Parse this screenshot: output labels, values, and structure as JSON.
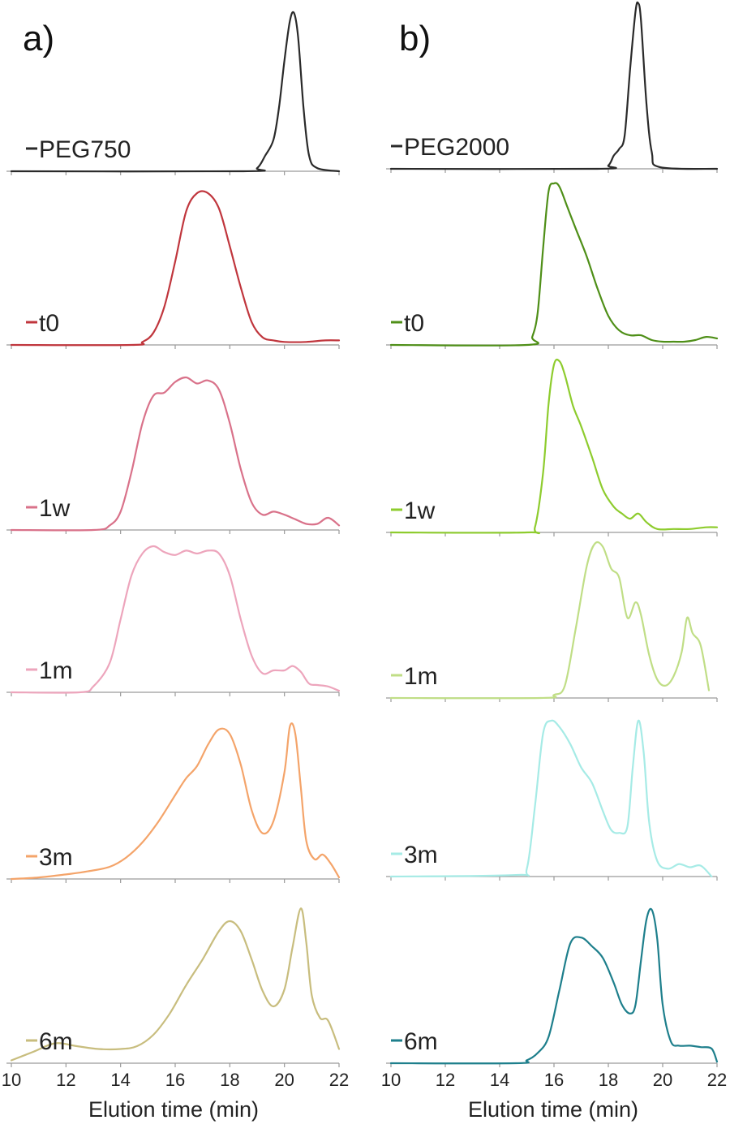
{
  "panels": [
    {
      "label": "a)"
    },
    {
      "label": "b)"
    }
  ],
  "chart_data": [
    {
      "type": "line",
      "panel": "a)",
      "xlabel": "Elution time (min)",
      "xlim": [
        10,
        22
      ],
      "xticks": [
        10,
        12,
        14,
        16,
        18,
        20,
        22
      ],
      "series": [
        {
          "name": "PEG750",
          "color": "#2a2a2a",
          "x": [
            10,
            18.5,
            19.0,
            19.3,
            19.6,
            19.8,
            20.0,
            20.2,
            20.35,
            20.5,
            20.7,
            20.9,
            21.2,
            22
          ],
          "y": [
            0,
            0,
            0.02,
            0.1,
            0.2,
            0.4,
            0.7,
            0.95,
            1.0,
            0.85,
            0.4,
            0.1,
            0.02,
            0
          ]
        },
        {
          "name": "t0",
          "color": "#c0363d",
          "x": [
            10,
            14.4,
            14.8,
            15.2,
            15.6,
            16.0,
            16.4,
            16.8,
            17.2,
            17.6,
            18.0,
            18.4,
            18.8,
            19.2,
            19.6,
            20.0,
            20.8,
            21.5,
            22
          ],
          "y": [
            0,
            0,
            0.02,
            0.08,
            0.25,
            0.55,
            0.88,
            1.0,
            1.0,
            0.9,
            0.65,
            0.38,
            0.15,
            0.05,
            0.03,
            0.02,
            0.02,
            0.03,
            0.03
          ]
        },
        {
          "name": "1w",
          "color": "#d9728a",
          "x": [
            10,
            13.0,
            13.6,
            14.0,
            14.4,
            14.8,
            15.2,
            15.6,
            16.0,
            16.4,
            16.8,
            17.2,
            17.6,
            18.0,
            18.4,
            18.8,
            19.2,
            19.6,
            20.0,
            20.4,
            20.8,
            21.2,
            21.6,
            22
          ],
          "y": [
            0,
            0,
            0.03,
            0.12,
            0.38,
            0.7,
            0.88,
            0.9,
            0.97,
            1.0,
            0.96,
            0.98,
            0.92,
            0.7,
            0.4,
            0.18,
            0.1,
            0.12,
            0.1,
            0.07,
            0.04,
            0.04,
            0.08,
            0.03
          ]
        },
        {
          "name": "1m",
          "color": "#eda5bc",
          "x": [
            10,
            12.5,
            13.0,
            13.6,
            14.0,
            14.4,
            14.8,
            15.2,
            15.6,
            16.0,
            16.4,
            16.8,
            17.2,
            17.6,
            18.0,
            18.4,
            18.8,
            19.2,
            19.6,
            20.0,
            20.3,
            20.6,
            20.9,
            21.2,
            21.6,
            22
          ],
          "y": [
            0,
            0,
            0.04,
            0.2,
            0.5,
            0.8,
            0.95,
            1.0,
            0.96,
            0.94,
            0.97,
            0.95,
            0.97,
            0.95,
            0.8,
            0.5,
            0.25,
            0.13,
            0.15,
            0.15,
            0.18,
            0.14,
            0.06,
            0.05,
            0.04,
            0.01
          ]
        },
        {
          "name": "3m",
          "color": "#f4a46a",
          "x": [
            10,
            11.0,
            12.0,
            12.8,
            13.6,
            14.2,
            14.8,
            15.4,
            16.0,
            16.4,
            16.8,
            17.2,
            17.6,
            18.0,
            18.4,
            18.8,
            19.2,
            19.6,
            20.0,
            20.2,
            20.4,
            20.6,
            20.8,
            21.1,
            21.4,
            21.7,
            22
          ],
          "y": [
            0,
            0.01,
            0.03,
            0.05,
            0.08,
            0.14,
            0.24,
            0.38,
            0.55,
            0.66,
            0.74,
            0.88,
            0.98,
            0.95,
            0.75,
            0.45,
            0.3,
            0.38,
            0.7,
            1.0,
            0.95,
            0.6,
            0.25,
            0.13,
            0.16,
            0.1,
            0.01
          ]
        },
        {
          "name": "6m",
          "color": "#c8bd7e",
          "x": [
            10,
            10.8,
            11.6,
            12.4,
            13.2,
            14.0,
            14.6,
            15.2,
            15.8,
            16.4,
            17.0,
            17.6,
            18.0,
            18.4,
            18.8,
            19.2,
            19.6,
            20.0,
            20.3,
            20.6,
            20.8,
            21.0,
            21.3,
            21.6,
            22
          ],
          "y": [
            0.02,
            0.08,
            0.14,
            0.12,
            0.1,
            0.1,
            0.12,
            0.2,
            0.35,
            0.55,
            0.73,
            0.93,
            1.0,
            0.93,
            0.73,
            0.51,
            0.4,
            0.52,
            0.82,
            1.09,
            0.85,
            0.48,
            0.32,
            0.3,
            0.1
          ]
        }
      ]
    },
    {
      "type": "line",
      "panel": "b)",
      "xlabel": "Elution time (min)",
      "xlim": [
        10,
        22
      ],
      "xticks": [
        10,
        12,
        14,
        16,
        18,
        20,
        22
      ],
      "series": [
        {
          "name": "PEG2000",
          "color": "#2a2a2a",
          "x": [
            10,
            17.6,
            18.0,
            18.2,
            18.4,
            18.6,
            18.8,
            19.0,
            19.1,
            19.2,
            19.4,
            19.6,
            19.9,
            22
          ],
          "y": [
            0,
            0,
            0.02,
            0.08,
            0.12,
            0.2,
            0.6,
            0.95,
            1.0,
            0.9,
            0.4,
            0.1,
            0.01,
            0
          ]
        },
        {
          "name": "t0",
          "color": "#4f8f18",
          "x": [
            10,
            15.0,
            15.2,
            15.4,
            15.6,
            15.8,
            16.0,
            16.2,
            16.5,
            16.8,
            17.2,
            17.6,
            18.0,
            18.4,
            18.8,
            19.2,
            19.6,
            20.0,
            20.4,
            20.8,
            21.2,
            21.6,
            22
          ],
          "y": [
            0,
            0,
            0.05,
            0.2,
            0.6,
            0.95,
            1.0,
            0.98,
            0.85,
            0.72,
            0.55,
            0.35,
            0.18,
            0.09,
            0.06,
            0.06,
            0.03,
            0.02,
            0.02,
            0.02,
            0.03,
            0.05,
            0.04
          ]
        },
        {
          "name": "1w",
          "color": "#8ecc2e",
          "x": [
            10,
            15.0,
            15.3,
            15.6,
            15.8,
            16.0,
            16.2,
            16.4,
            16.7,
            17.0,
            17.4,
            17.8,
            18.2,
            18.5,
            18.8,
            19.1,
            19.4,
            19.8,
            20.4,
            21.0,
            21.6,
            22
          ],
          "y": [
            0,
            0,
            0.03,
            0.35,
            0.75,
            0.98,
            1.0,
            0.92,
            0.74,
            0.62,
            0.44,
            0.25,
            0.15,
            0.11,
            0.08,
            0.11,
            0.06,
            0.02,
            0.02,
            0.02,
            0.03,
            0.03
          ]
        },
        {
          "name": "1m",
          "color": "#c0de86",
          "x": [
            10,
            15.5,
            16.0,
            16.4,
            16.8,
            17.2,
            17.5,
            17.8,
            18.1,
            18.4,
            18.7,
            19.0,
            19.2,
            19.5,
            19.8,
            20.1,
            20.4,
            20.7,
            20.9,
            21.1,
            21.4,
            21.7
          ],
          "y": [
            0,
            0,
            0.02,
            0.08,
            0.45,
            0.85,
            1.0,
            0.98,
            0.84,
            0.78,
            0.52,
            0.62,
            0.54,
            0.28,
            0.12,
            0.08,
            0.14,
            0.3,
            0.52,
            0.42,
            0.34,
            0.05
          ]
        },
        {
          "name": "3m",
          "color": "#a6ebe6",
          "x": [
            10,
            14.6,
            15.0,
            15.3,
            15.6,
            15.9,
            16.2,
            16.6,
            17.0,
            17.4,
            17.8,
            18.1,
            18.4,
            18.7,
            18.9,
            19.1,
            19.3,
            19.5,
            19.8,
            20.2,
            20.6,
            21.0,
            21.4,
            21.8
          ],
          "y": [
            0,
            0.01,
            0.05,
            0.45,
            0.92,
            1.0,
            0.96,
            0.85,
            0.7,
            0.6,
            0.42,
            0.3,
            0.28,
            0.32,
            0.7,
            1.0,
            0.8,
            0.35,
            0.1,
            0.05,
            0.08,
            0.06,
            0.07,
            0.0
          ]
        },
        {
          "name": "6m",
          "color": "#1e7f8c",
          "x": [
            10,
            14.6,
            15.0,
            15.4,
            15.8,
            16.2,
            16.6,
            17.0,
            17.4,
            17.8,
            18.2,
            18.5,
            18.8,
            19.0,
            19.2,
            19.4,
            19.6,
            19.8,
            20.0,
            20.3,
            20.6,
            21.0,
            21.4,
            21.8,
            22
          ],
          "y": [
            0,
            0,
            0.02,
            0.07,
            0.18,
            0.5,
            0.82,
            0.86,
            0.8,
            0.72,
            0.55,
            0.4,
            0.34,
            0.4,
            0.7,
            0.98,
            1.05,
            0.85,
            0.4,
            0.15,
            0.12,
            0.12,
            0.11,
            0.1,
            0.01
          ]
        }
      ]
    }
  ]
}
